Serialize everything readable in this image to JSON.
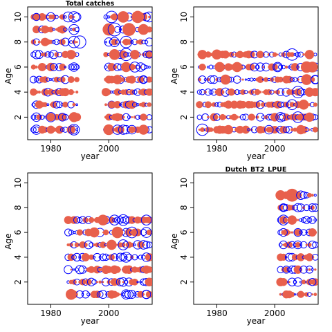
{
  "colors": {
    "positive_residual": "#e8604c",
    "negative_residual": "#0000ff",
    "axis": "#000000"
  },
  "chart_data": [
    {
      "type": "scatter",
      "subtype": "bubble-residuals",
      "title": "Total catches",
      "xlabel": "year",
      "ylabel": "Age",
      "xlim": [
        1972,
        2015
      ],
      "ylim": [
        0.2,
        10.8
      ],
      "xticks": [
        1980,
        2000
      ],
      "yticks": [
        2,
        4,
        6,
        8,
        10
      ],
      "ages": [
        1,
        2,
        3,
        4,
        5,
        6,
        7,
        8,
        9,
        10
      ],
      "year_ranges": [
        [
          1974,
          1985
        ],
        [
          1987,
          1989
        ],
        [
          1999,
          2014
        ]
      ],
      "bubbles": [
        {
          "year": 1975,
          "age": 10,
          "sign": "negative",
          "size": 1.0
        },
        {
          "year": 1980,
          "age": 10,
          "sign": "negative",
          "size": 1.2
        },
        {
          "year": 1986,
          "age": 10,
          "sign": "negative",
          "size": 1.4
        },
        {
          "year": 1988,
          "age": 10,
          "sign": "negative",
          "size": 1.5
        },
        {
          "year": 2001,
          "age": 10,
          "sign": "negative",
          "size": 1.6
        },
        {
          "year": 2005,
          "age": 10,
          "sign": "positive",
          "size": 1.6
        },
        {
          "year": 2010,
          "age": 10,
          "sign": "positive",
          "size": 1.7
        },
        {
          "year": 2014,
          "age": 10,
          "sign": "negative",
          "size": 1.4
        },
        {
          "year": 1988,
          "age": 9,
          "sign": "negative",
          "size": 1.4
        },
        {
          "year": 2000,
          "age": 9,
          "sign": "positive",
          "size": 1.7
        },
        {
          "year": 2002,
          "age": 9,
          "sign": "negative",
          "size": 1.8
        },
        {
          "year": 2007,
          "age": 9,
          "sign": "positive",
          "size": 1.8
        },
        {
          "year": 2012,
          "age": 9,
          "sign": "positive",
          "size": 1.5
        },
        {
          "year": 1988,
          "age": 8,
          "sign": "negative",
          "size": 1.6
        },
        {
          "year": 1990,
          "age": 8,
          "sign": "negative",
          "size": 1.7
        },
        {
          "year": 2002,
          "age": 8,
          "sign": "negative",
          "size": 1.3
        },
        {
          "year": 2006,
          "age": 8,
          "sign": "negative",
          "size": 1.6
        },
        {
          "year": 1987,
          "age": 7,
          "sign": "positive",
          "size": 1.3
        },
        {
          "year": 2002,
          "age": 7,
          "sign": "positive",
          "size": 1.5
        },
        {
          "year": 2006,
          "age": 7,
          "sign": "negative",
          "size": 1.7
        },
        {
          "year": 2009,
          "age": 7,
          "sign": "positive",
          "size": 1.3
        },
        {
          "year": 2014,
          "age": 7,
          "sign": "negative",
          "size": 1.0
        },
        {
          "year": 1988,
          "age": 6,
          "sign": "negative",
          "size": 1.2
        },
        {
          "year": 2006,
          "age": 6,
          "sign": "positive",
          "size": 1.4
        },
        {
          "year": 2009,
          "age": 6,
          "sign": "negative",
          "size": 1.4
        },
        {
          "year": 2011,
          "age": 6,
          "sign": "negative",
          "size": 1.2
        },
        {
          "year": 2003,
          "age": 5,
          "sign": "positive",
          "size": 1.3
        },
        {
          "year": 2008,
          "age": 5,
          "sign": "positive",
          "size": 1.1
        },
        {
          "year": 2012,
          "age": 5,
          "sign": "negative",
          "size": 1.0
        },
        {
          "year": 2001,
          "age": 3,
          "sign": "positive",
          "size": 1.0
        },
        {
          "year": 2012,
          "age": 2,
          "sign": "positive",
          "size": 1.0
        },
        {
          "year": 1975,
          "age": 2,
          "sign": "negative",
          "size": 1.2
        },
        {
          "year": 1980,
          "age": 2,
          "sign": "negative",
          "size": 1.3
        },
        {
          "year": 1984,
          "age": 2,
          "sign": "negative",
          "size": 1.1
        },
        {
          "year": 1988,
          "age": 2,
          "sign": "positive",
          "size": 1.4
        },
        {
          "year": 1975,
          "age": 1,
          "sign": "negative",
          "size": 1.3
        },
        {
          "year": 1977,
          "age": 1,
          "sign": "positive",
          "size": 1.1
        },
        {
          "year": 1988,
          "age": 1,
          "sign": "negative",
          "size": 1.5
        },
        {
          "year": 2000,
          "age": 1,
          "sign": "positive",
          "size": 1.5
        },
        {
          "year": 2003,
          "age": 1,
          "sign": "negative",
          "size": 1.3
        },
        {
          "year": 2005,
          "age": 1,
          "sign": "negative",
          "size": 1.3
        },
        {
          "year": 2008,
          "age": 1,
          "sign": "negative",
          "size": 1.2
        },
        {
          "year": 2012,
          "age": 1,
          "sign": "positive",
          "size": 1.4
        }
      ]
    },
    {
      "type": "scatter",
      "subtype": "bubble-residuals",
      "title": "",
      "xlabel": "year",
      "ylabel": "Age",
      "xlim": [
        1972,
        2015
      ],
      "ylim": [
        0.2,
        10.8
      ],
      "xticks": [
        1980,
        2000
      ],
      "yticks": [
        2,
        4,
        6,
        8,
        10
      ],
      "ages": [
        1,
        2,
        3,
        4,
        5,
        6,
        7
      ],
      "year_ranges": [
        [
          1974,
          2014
        ]
      ],
      "bubbles": [
        {
          "year": 1975,
          "age": 7,
          "sign": "positive",
          "size": 1.3
        },
        {
          "year": 1980,
          "age": 7,
          "sign": "positive",
          "size": 1.4
        },
        {
          "year": 2006,
          "age": 7,
          "sign": "negative",
          "size": 1.6
        },
        {
          "year": 2012,
          "age": 7,
          "sign": "positive",
          "size": 1.3
        },
        {
          "year": 1981,
          "age": 6,
          "sign": "positive",
          "size": 1.4
        },
        {
          "year": 1987,
          "age": 6,
          "sign": "positive",
          "size": 1.4
        },
        {
          "year": 2001,
          "age": 6,
          "sign": "negative",
          "size": 1.3
        },
        {
          "year": 2011,
          "age": 6,
          "sign": "positive",
          "size": 1.6
        },
        {
          "year": 2013,
          "age": 6,
          "sign": "positive",
          "size": 1.5
        },
        {
          "year": 1983,
          "age": 5,
          "sign": "positive",
          "size": 1.4
        },
        {
          "year": 2011,
          "age": 5,
          "sign": "positive",
          "size": 1.5
        },
        {
          "year": 2014,
          "age": 5,
          "sign": "negative",
          "size": 1.2
        },
        {
          "year": 2008,
          "age": 4,
          "sign": "negative",
          "size": 1.6
        },
        {
          "year": 2012,
          "age": 4,
          "sign": "positive",
          "size": 1.3
        },
        {
          "year": 2006,
          "age": 3,
          "sign": "negative",
          "size": 1.4
        },
        {
          "year": 2010,
          "age": 3,
          "sign": "positive",
          "size": 1.4
        },
        {
          "year": 2002,
          "age": 2,
          "sign": "negative",
          "size": 1.3
        },
        {
          "year": 2008,
          "age": 2,
          "sign": "negative",
          "size": 1.5
        },
        {
          "year": 2012,
          "age": 2,
          "sign": "positive",
          "size": 1.3
        },
        {
          "year": 1975,
          "age": 1,
          "sign": "negative",
          "size": 1.6
        },
        {
          "year": 1984,
          "age": 1,
          "sign": "positive",
          "size": 1.3
        },
        {
          "year": 1998,
          "age": 1,
          "sign": "negative",
          "size": 1.2
        },
        {
          "year": 2009,
          "age": 1,
          "sign": "positive",
          "size": 1.3
        }
      ]
    },
    {
      "type": "scatter",
      "subtype": "bubble-residuals",
      "title": "",
      "xlabel": "year",
      "ylabel": "Age",
      "xlim": [
        1972,
        2015
      ],
      "ylim": [
        0.2,
        10.8
      ],
      "xticks": [
        1980,
        2000
      ],
      "yticks": [
        2,
        4,
        6,
        8,
        10
      ],
      "ages": [
        1,
        2,
        3,
        4,
        5,
        6,
        7
      ],
      "year_ranges": [
        [
          1986,
          2014
        ]
      ],
      "bubbles": [
        {
          "year": 1998,
          "age": 7,
          "sign": "positive",
          "size": 1.5
        },
        {
          "year": 2002,
          "age": 7,
          "sign": "negative",
          "size": 1.4
        },
        {
          "year": 2005,
          "age": 7,
          "sign": "negative",
          "size": 1.5
        },
        {
          "year": 2013,
          "age": 7,
          "sign": "negative",
          "size": 1.4
        },
        {
          "year": 1995,
          "age": 6,
          "sign": "positive",
          "size": 1.4
        },
        {
          "year": 2003,
          "age": 6,
          "sign": "positive",
          "size": 1.6
        },
        {
          "year": 2008,
          "age": 6,
          "sign": "negative",
          "size": 1.5
        },
        {
          "year": 2013,
          "age": 6,
          "sign": "negative",
          "size": 1.4
        },
        {
          "year": 2001,
          "age": 5,
          "sign": "positive",
          "size": 1.4
        },
        {
          "year": 2005,
          "age": 5,
          "sign": "negative",
          "size": 1.4
        },
        {
          "year": 2012,
          "age": 5,
          "sign": "negative",
          "size": 1.2
        },
        {
          "year": 2006,
          "age": 4,
          "sign": "negative",
          "size": 1.4
        },
        {
          "year": 2013,
          "age": 4,
          "sign": "negative",
          "size": 1.2
        },
        {
          "year": 2002,
          "age": 3,
          "sign": "positive",
          "size": 1.2
        },
        {
          "year": 2014,
          "age": 2,
          "sign": "positive",
          "size": 1.2
        },
        {
          "year": 2005,
          "age": 2,
          "sign": "negative",
          "size": 1.2
        },
        {
          "year": 1987,
          "age": 1,
          "sign": "positive",
          "size": 1.5
        },
        {
          "year": 2006,
          "age": 1,
          "sign": "negative",
          "size": 1.3
        },
        {
          "year": 2013,
          "age": 1,
          "sign": "negative",
          "size": 1.2
        }
      ]
    },
    {
      "type": "scatter",
      "subtype": "bubble-residuals",
      "title": "Dutch_BT2_LPUE",
      "xlabel": "year",
      "ylabel": "Age",
      "xlim": [
        1972,
        2015
      ],
      "ylim": [
        0.2,
        10.8
      ],
      "xticks": [
        1980,
        2000
      ],
      "yticks": [
        2,
        4,
        6,
        8,
        10
      ],
      "ages": [
        1,
        2,
        3,
        4,
        5,
        6,
        7,
        8,
        9
      ],
      "year_ranges": [
        [
          2002,
          2014
        ]
      ],
      "bubbles": [
        {
          "year": 2002,
          "age": 9,
          "sign": "positive",
          "size": 1.4
        },
        {
          "year": 2006,
          "age": 9,
          "sign": "positive",
          "size": 1.8
        },
        {
          "year": 2009,
          "age": 9,
          "sign": "negative",
          "size": 1.2
        },
        {
          "year": 2003,
          "age": 8,
          "sign": "negative",
          "size": 1.1
        },
        {
          "year": 2013,
          "age": 8,
          "sign": "negative",
          "size": 1.1
        },
        {
          "year": 2003,
          "age": 7,
          "sign": "negative",
          "size": 1.4
        },
        {
          "year": 2006,
          "age": 7,
          "sign": "positive",
          "size": 1.3
        },
        {
          "year": 2003,
          "age": 6,
          "sign": "negative",
          "size": 1.1
        },
        {
          "year": 2008,
          "age": 6,
          "sign": "negative",
          "size": 1.1
        },
        {
          "year": 2003,
          "age": 5,
          "sign": "negative",
          "size": 1.1
        },
        {
          "year": 2008,
          "age": 5,
          "sign": "negative",
          "size": 1.1
        },
        {
          "year": 2004,
          "age": 3,
          "sign": "negative",
          "size": 1.0
        },
        {
          "year": 2012,
          "age": 3,
          "sign": "negative",
          "size": 1.0
        },
        {
          "year": 2003,
          "age": 2,
          "sign": "positive",
          "size": 1.1
        },
        {
          "year": 2013,
          "age": 2,
          "sign": "negative",
          "size": 1.0
        }
      ]
    }
  ]
}
